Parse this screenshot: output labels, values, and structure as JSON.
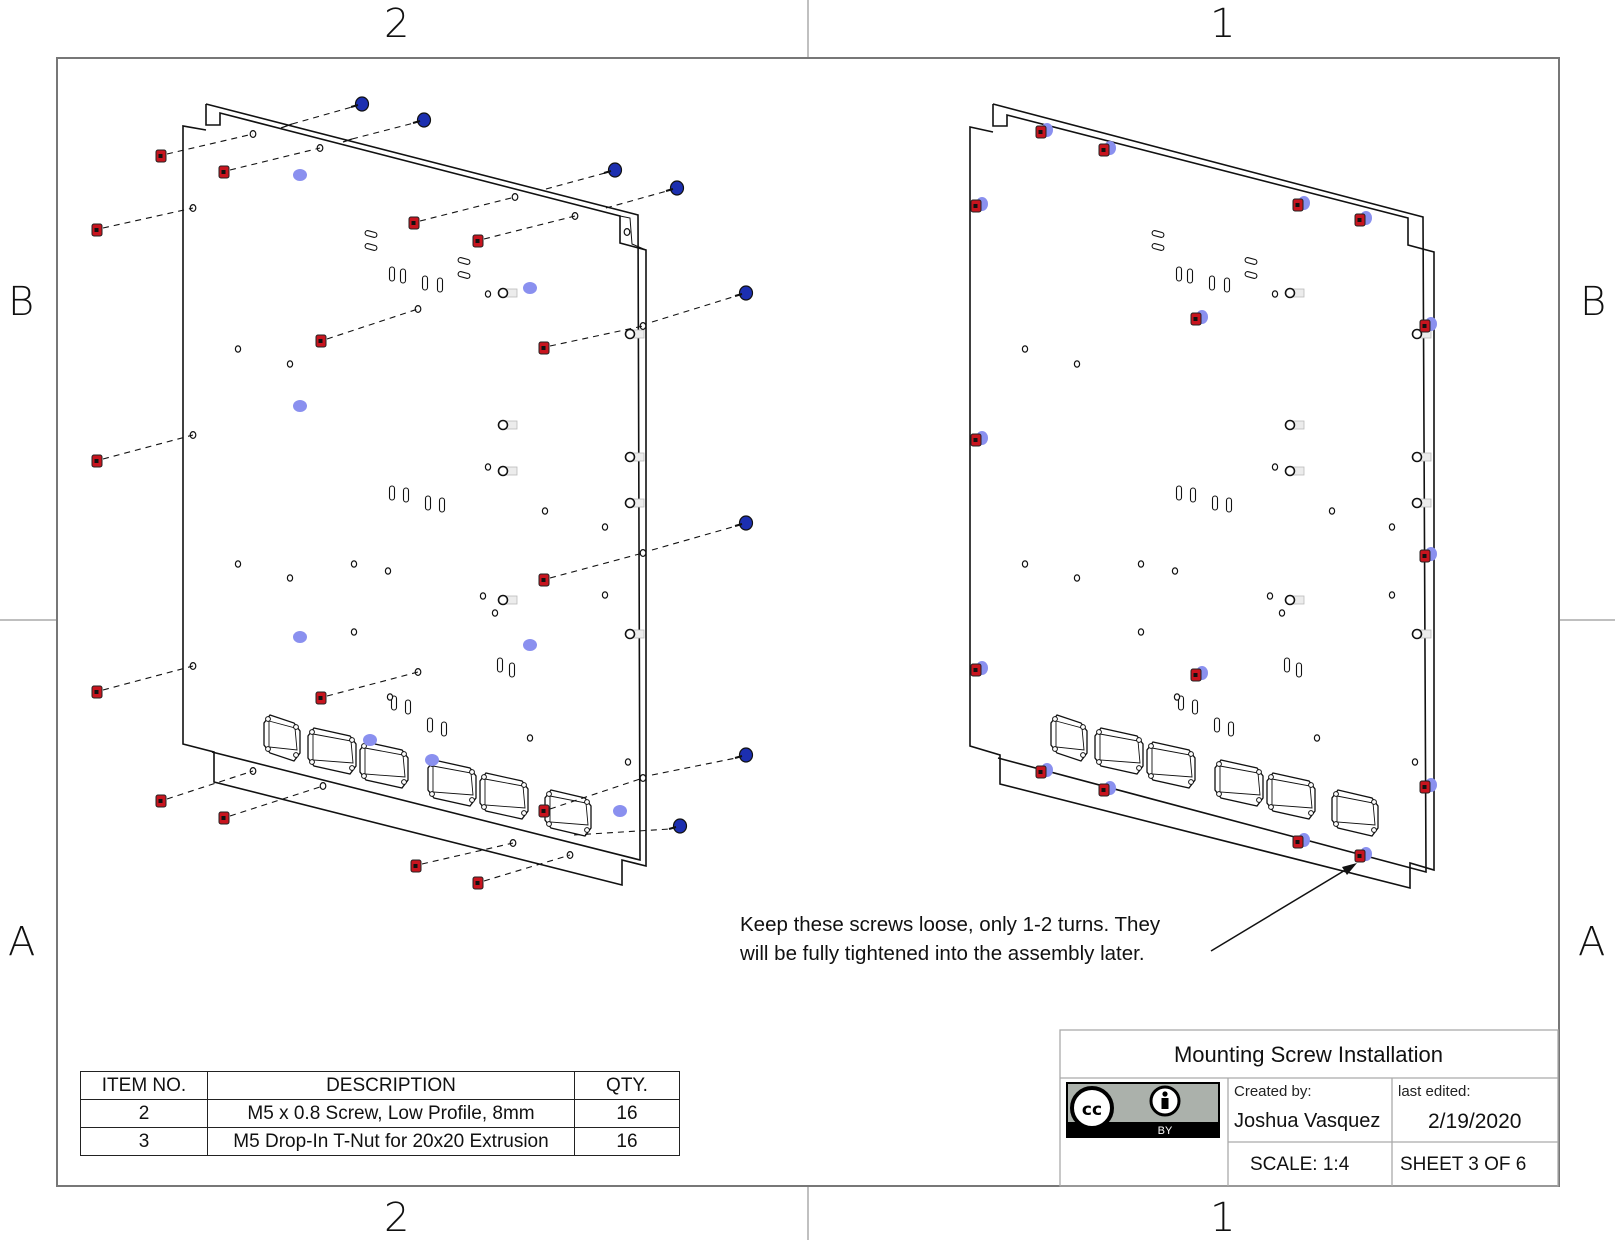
{
  "zones": {
    "top": [
      "2",
      "1"
    ],
    "bottom": [
      "2",
      "1"
    ],
    "left": [
      "B",
      "A"
    ],
    "right": [
      "B",
      "A"
    ]
  },
  "note": {
    "line1": "Keep these screws loose, only 1-2 turns. They",
    "line2": "will be fully tightened into the assembly later."
  },
  "bom": {
    "headers": [
      "ITEM NO.",
      "DESCRIPTION",
      "QTY."
    ],
    "rows": [
      {
        "item": "2",
        "description": "M5 x 0.8 Screw, Low Profile, 8mm",
        "qty": "16"
      },
      {
        "item": "3",
        "description": "M5 Drop-In T-Nut for 20x20 Extrusion",
        "qty": "16"
      }
    ]
  },
  "title_block": {
    "title": "Mounting Screw Installation",
    "created_by_label": "Created by:",
    "created_by": "Joshua Vasquez",
    "last_edited_label": "last edited:",
    "last_edited": "2/19/2020",
    "scale": "SCALE: 1:4",
    "sheet": "SHEET 3 OF 6",
    "license_badge": "BY"
  },
  "colors": {
    "screw": "#1c2fb0",
    "screw_ghost": "#8a90ef",
    "tnut": "#c8141e",
    "line": "#111111"
  }
}
